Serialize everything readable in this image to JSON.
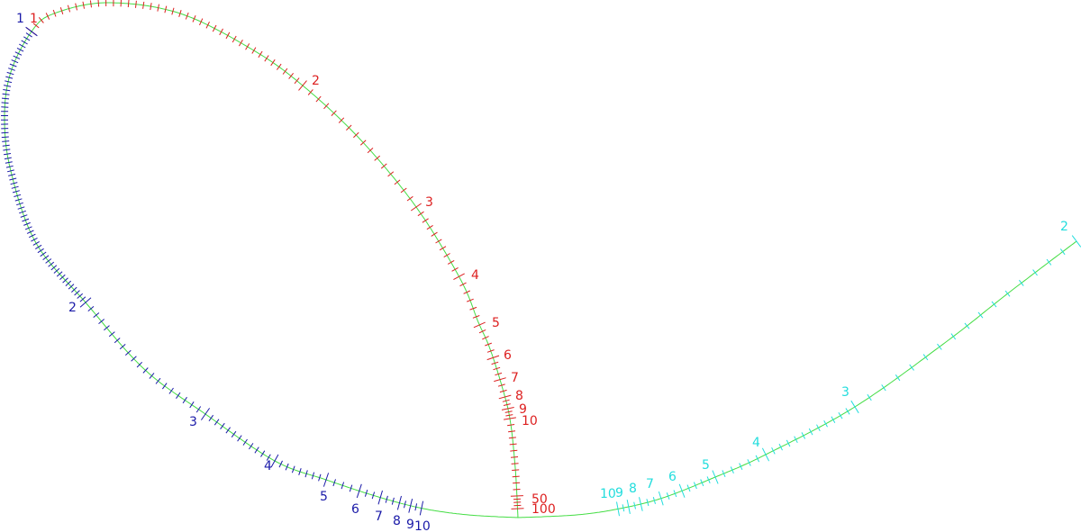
{
  "colors": {
    "curve": "#44dd44",
    "red_scale": "#dd2020",
    "blue_scale": "#1a1aa8",
    "cyan_scale": "#22dddd"
  },
  "scales": {
    "red": [
      "1",
      "2",
      "3",
      "4",
      "5",
      "6",
      "7",
      "8",
      "9",
      "10",
      "50",
      "100"
    ],
    "blue": [
      "1",
      "2",
      "3",
      "4",
      "5",
      "6",
      "7",
      "8",
      "9",
      "10"
    ],
    "cyan": [
      "2",
      "3",
      "4",
      "5",
      "6",
      "7",
      "8",
      "9",
      "10"
    ]
  }
}
